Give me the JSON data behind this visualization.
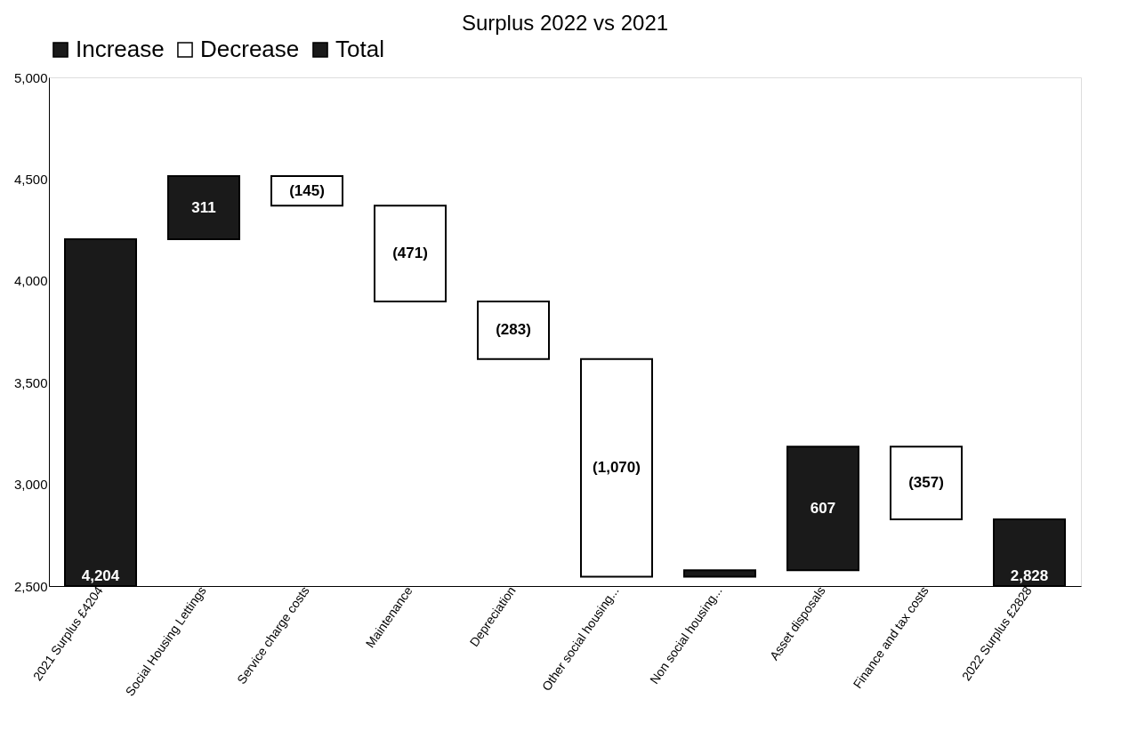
{
  "chart_data": {
    "type": "bar",
    "title": "Surplus 2022 vs 2021",
    "categories": [
      "2021 Surplus £4204",
      "Social Housing Lettings",
      "Service charge costs",
      "Maintenance",
      "Depreciation",
      "Other social housing...",
      "Non social housing...",
      "Asset disposals",
      "Finance and tax costs",
      "2022 Surplus £2828"
    ],
    "series": [
      {
        "name": "Increase",
        "color": "#1a1a1a",
        "values": [
          null,
          311,
          null,
          null,
          null,
          null,
          32,
          607,
          null,
          null
        ],
        "base": [
          null,
          4204,
          null,
          null,
          null,
          null,
          2546,
          2578,
          null,
          null
        ],
        "value_labels": [
          null,
          "311",
          null,
          null,
          null,
          null,
          null,
          "607",
          null,
          null
        ]
      },
      {
        "name": "Decrease",
        "color": "#ffffff",
        "values": [
          null,
          null,
          -145,
          -471,
          -283,
          -1070,
          null,
          null,
          -357,
          null
        ],
        "base": [
          null,
          null,
          4515,
          4370,
          3899,
          3616,
          null,
          null,
          3185,
          null
        ],
        "value_labels": [
          null,
          null,
          "(145)",
          "(471)",
          "(283)",
          "(1,070)",
          null,
          null,
          "(357)",
          null
        ]
      },
      {
        "name": "Total",
        "color": "#1a1a1a",
        "values": [
          4204,
          null,
          null,
          null,
          null,
          null,
          null,
          null,
          null,
          2828
        ],
        "value_labels": [
          "4,204",
          null,
          null,
          null,
          null,
          null,
          null,
          null,
          null,
          "2,828"
        ]
      }
    ],
    "ylim": [
      2500,
      5000
    ],
    "yticks": [
      {
        "value": 2500,
        "label": "2,500"
      },
      {
        "value": 3000,
        "label": "3,000"
      },
      {
        "value": 3500,
        "label": "3,500"
      },
      {
        "value": 4000,
        "label": "4,000"
      },
      {
        "value": 4500,
        "label": "4,500"
      },
      {
        "value": 5000,
        "label": "5,000"
      }
    ],
    "grid": false,
    "legend": "top"
  }
}
